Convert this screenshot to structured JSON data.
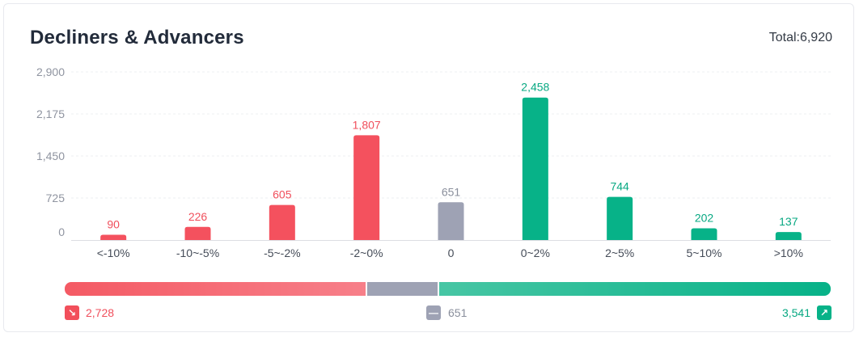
{
  "header": {
    "title": "Decliners & Advancers",
    "total": "Total:6,920"
  },
  "chart_data": {
    "type": "bar",
    "categories": [
      "<-10%",
      "-10~-5%",
      "-5~-2%",
      "-2~0%",
      "0",
      "0~2%",
      "2~5%",
      "5~10%",
      ">10%"
    ],
    "values": [
      90,
      226,
      605,
      1807,
      651,
      2458,
      744,
      202,
      137
    ],
    "value_labels": [
      "90",
      "226",
      "605",
      "1,807",
      "651",
      "2,458",
      "744",
      "202",
      "137"
    ],
    "bar_colors": [
      "#f4515e",
      "#f4515e",
      "#f4515e",
      "#f4515e",
      "#9ea2b4",
      "#07b288",
      "#07b288",
      "#07b288",
      "#07b288"
    ],
    "label_colors": [
      "#f04f5c",
      "#f04f5c",
      "#f04f5c",
      "#f04f5c",
      "#8a8f9c",
      "#07a882",
      "#07a882",
      "#07a882",
      "#07a882"
    ],
    "yticks": [
      0,
      725,
      1450,
      2175,
      2900
    ],
    "ytick_labels": [
      "0",
      "725",
      "1,450",
      "2,175",
      "2,900"
    ],
    "ylim": [
      0,
      2900
    ],
    "grid": true,
    "title": "Decliners & Advancers",
    "xlabel": "",
    "ylabel": ""
  },
  "breadth": {
    "decliners": 2728,
    "flat": 651,
    "advancers": 3541,
    "decliners_label": "2,728",
    "flat_label": "651",
    "advancers_label": "3,541"
  },
  "colors": {
    "decline": "#f4515e",
    "flat": "#9ea2b4",
    "advance": "#07b288",
    "gridline": "#eeeff2",
    "axis": "#dcdde2"
  },
  "icons": {
    "decline": "trend-down-icon",
    "flat": "minus-icon",
    "advance": "trend-up-icon"
  }
}
